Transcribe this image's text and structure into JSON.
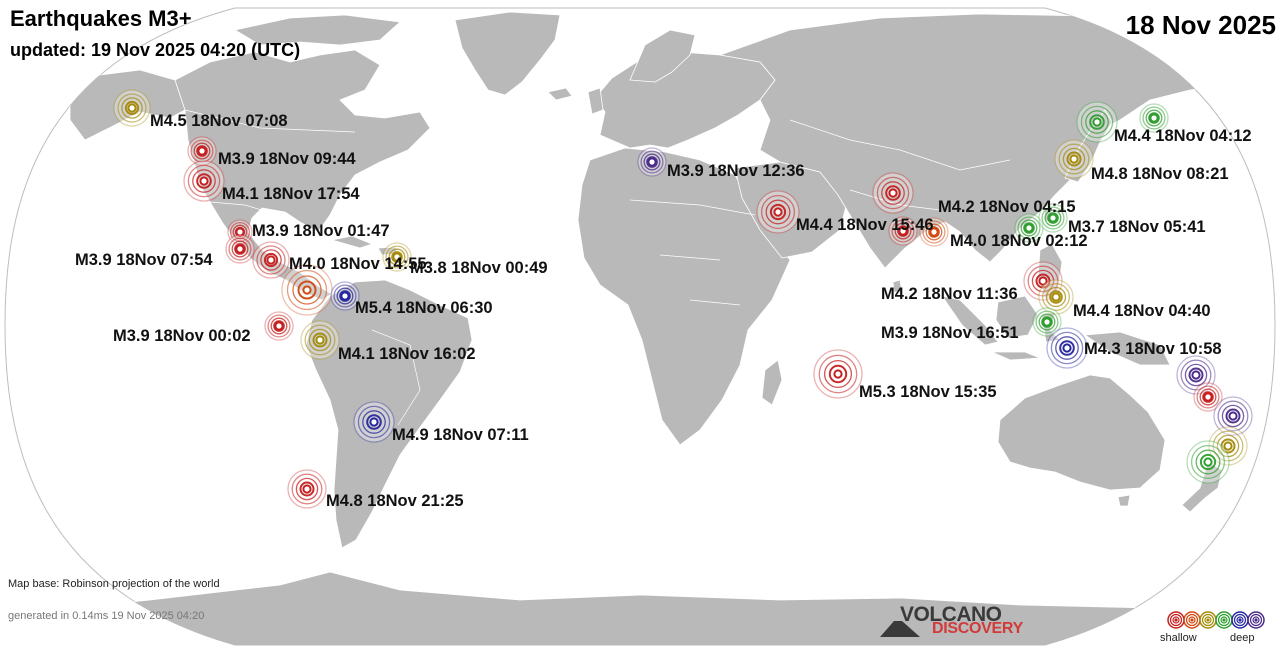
{
  "header": {
    "title": "Earthquakes M3+",
    "subtitle": "updated: 19 Nov 2025 04:20 (UTC)",
    "date": "18 Nov 2025"
  },
  "footer": {
    "map_base": "Map base: Robinson projection of the world",
    "generated": "generated in 0.14ms 19 Nov 2025 04:20",
    "brand_top": "VOLCANO",
    "brand_bottom": "DISCOVERY",
    "legend_shallow": "shallow",
    "legend_deep": "deep"
  },
  "colors": {
    "ocean": "#ffffff",
    "land": "#b9b9b9",
    "border": "#ffffff",
    "depth_scale": [
      "#c61f1f",
      "#d04a12",
      "#a48a08",
      "#2f9e2f",
      "#26269e",
      "#4a2a8a"
    ]
  },
  "quakes": [
    {
      "label": "M4.5 18Nov 07:08",
      "depth": 2
    },
    {
      "label": "M3.9 18Nov 09:44",
      "depth": 0
    },
    {
      "label": "M4.1 18Nov 17:54",
      "depth": 0
    },
    {
      "label": "M3.9 18Nov 01:47",
      "depth": 0
    },
    {
      "label": "M3.9 18Nov 07:54",
      "depth": 0
    },
    {
      "label": "M4.0 18Nov 14:55",
      "depth": 0
    },
    {
      "label": "M3.8 18Nov 00:49",
      "depth": 2
    },
    {
      "label": "",
      "depth": 1
    },
    {
      "label": "M5.4 18Nov 06:30",
      "depth": 4
    },
    {
      "label": "M3.9 18Nov 00:02",
      "depth": 0
    },
    {
      "label": "M4.1 18Nov 16:02",
      "depth": 2
    },
    {
      "label": "M4.9 18Nov 07:11",
      "depth": 4
    },
    {
      "label": "M4.8 18Nov 21:25",
      "depth": 0
    },
    {
      "label": "M3.9 18Nov 12:36",
      "depth": 5
    },
    {
      "label": "M4.4 18Nov 15:46",
      "depth": 0
    },
    {
      "label": "M4.2 18Nov 04:15",
      "depth": 0
    },
    {
      "label": "",
      "depth": 0
    },
    {
      "label": "M4.0 18Nov 02:12",
      "depth": 3
    },
    {
      "label": "M3.7 18Nov 05:41",
      "depth": 3
    },
    {
      "label": "",
      "depth": 1
    },
    {
      "label": "M4.4 18Nov 04:12",
      "depth": 3
    },
    {
      "label": "",
      "depth": 3
    },
    {
      "label": "M4.8 18Nov 08:21",
      "depth": 2
    },
    {
      "label": "M4.2 18Nov 11:36",
      "depth": 0
    },
    {
      "label": "M4.4 18Nov 04:40",
      "depth": 2
    },
    {
      "label": "M3.9 18Nov 16:51",
      "depth": 3
    },
    {
      "label": "M4.3 18Nov 10:58",
      "depth": 4
    },
    {
      "label": "M5.3 18Nov 15:35",
      "depth": 0
    },
    {
      "label": "",
      "depth": 5
    },
    {
      "label": "",
      "depth": 0
    },
    {
      "label": "",
      "depth": 5
    },
    {
      "label": "",
      "depth": 2
    },
    {
      "label": "",
      "depth": 3
    }
  ]
}
